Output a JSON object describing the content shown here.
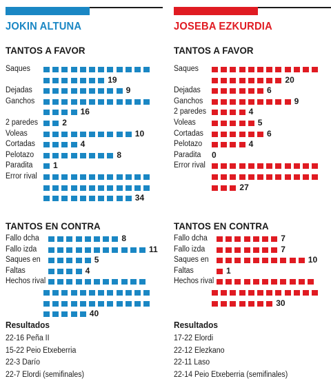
{
  "colors": {
    "blue": "#1a87c4",
    "red": "#e01b22"
  },
  "chart_data": [
    {
      "type": "bar",
      "player": "JOKIN ALTUNA",
      "color": "#1a87c4",
      "title": "TANTOS A FAVOR",
      "categories": [
        "Saques",
        "Dejadas",
        "Ganchos",
        "2 paredes",
        "Voleas",
        "Cortadas",
        "Pelotazo",
        "Paradita",
        "Error rival"
      ],
      "values": [
        19,
        9,
        16,
        2,
        10,
        4,
        8,
        1,
        34
      ]
    },
    {
      "type": "bar",
      "player": "JOKIN ALTUNA",
      "color": "#1a87c4",
      "title": "TANTOS EN CONTRA",
      "categories": [
        "Fallo dcha",
        "Fallo izda",
        "Saques en",
        "Faltas",
        "Hechos rival"
      ],
      "values": [
        8,
        11,
        5,
        4,
        40
      ]
    },
    {
      "type": "bar",
      "player": "JOSEBA EZKURDIA",
      "color": "#e01b22",
      "title": "TANTOS A FAVOR",
      "categories": [
        "Saques",
        "Dejadas",
        "Ganchos",
        "2 paredes",
        "Voleas",
        "Cortadas",
        "Pelotazo",
        "Paradita",
        "Error rival"
      ],
      "values": [
        20,
        6,
        9,
        4,
        5,
        6,
        4,
        0,
        27
      ]
    },
    {
      "type": "bar",
      "player": "JOSEBA EZKURDIA",
      "color": "#e01b22",
      "title": "TANTOS EN CONTRA",
      "categories": [
        "Fallo dcha",
        "Fallo izda",
        "Saques en",
        "Faltas",
        "Hechos rival"
      ],
      "values": [
        7,
        7,
        10,
        1,
        30
      ]
    }
  ],
  "left": {
    "name": "JOKIN ALTUNA",
    "favor_title": "TANTOS A FAVOR",
    "contra_title": "TANTOS EN CONTRA",
    "results_title": "Resultados",
    "results": [
      "22-16 Peña II",
      "15-22 Peio Etxeberria",
      "22-3 Darío",
      "22-7 Elordi (semifinales)"
    ]
  },
  "right": {
    "name": "JOSEBA EZKURDIA",
    "favor_title": "TANTOS A FAVOR",
    "contra_title": "TANTOS EN CONTRA",
    "results_title": "Resultados",
    "results": [
      "17-22 Elordi",
      "22-12 Elezkano",
      "22-11 Laso",
      "22-14 Peio Etxeberria (semifinales)"
    ]
  }
}
